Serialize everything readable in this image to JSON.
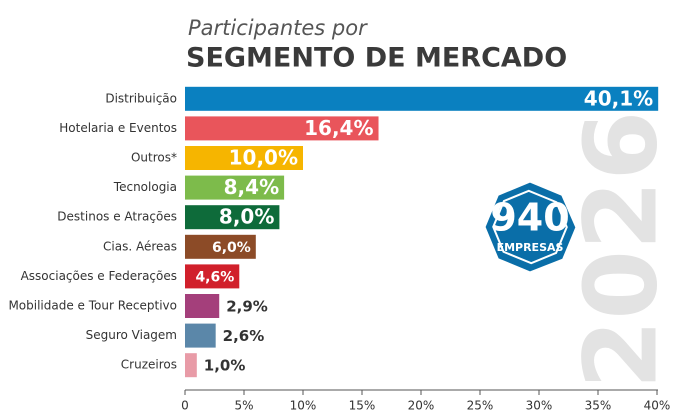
{
  "chart_data": {
    "type": "bar",
    "orientation": "horizontal",
    "subtitle": "Participantes por",
    "title": "SEGMENTO DE MERCADO",
    "categories": [
      "Distribuição",
      "Hotelaria e Eventos",
      "Outros*",
      "Tecnologia",
      "Destinos e Atrações",
      "Cias. Aéreas",
      "Associações e Federações",
      "Mobilidade e Tour Receptivo",
      "Seguro Viagem",
      "Cruzeiros"
    ],
    "values": [
      40.1,
      16.4,
      10.0,
      8.4,
      8.0,
      6.0,
      4.6,
      2.9,
      2.6,
      1.0
    ],
    "value_labels": [
      "40,1%",
      "16,4%",
      "10,0%",
      "8,4%",
      "8,0%",
      "6,0%",
      "4,6%",
      "2,9%",
      "2,6%",
      "1,0%"
    ],
    "colors": [
      "#0a80c0",
      "#e9555b",
      "#f6b500",
      "#7dbb4b",
      "#0e6b3a",
      "#8c4b27",
      "#d1202b",
      "#a43f7b",
      "#5b87a9",
      "#e89ba7"
    ],
    "xlim": [
      0,
      40
    ],
    "xticks": [
      0,
      {
        "value": 5,
        "label": "5%"
      },
      {
        "value": 10,
        "label": "10%"
      },
      {
        "value": 15,
        "label": "15%"
      },
      {
        "value": 20,
        "label": "20%"
      },
      {
        "value": 25,
        "label": "25%"
      },
      {
        "value": 30,
        "label": "30%"
      },
      {
        "value": 35,
        "label": "35%"
      },
      {
        "value": 40,
        "label": "40%"
      }
    ],
    "grid": false,
    "badge": {
      "number": "940",
      "label": "EMPRESAS"
    },
    "watermark": "2026"
  }
}
